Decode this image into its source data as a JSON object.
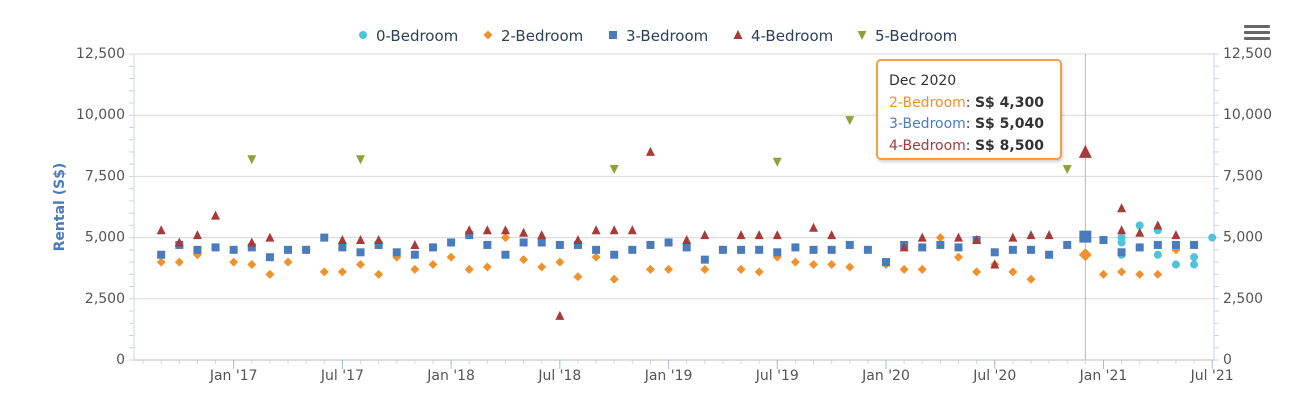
{
  "chart_data": {
    "type": "scatter",
    "x_type": "date",
    "xticks": [
      "Jan '17",
      "Jul '17",
      "Jan '18",
      "Jul '18",
      "Jan '19",
      "Jul '19",
      "Jan '20",
      "Jul '20",
      "Jan '21",
      "Jul '21"
    ],
    "x_tick_dates": [
      "2017-01",
      "2017-07",
      "2018-01",
      "2018-07",
      "2019-01",
      "2019-07",
      "2020-01",
      "2020-07",
      "2021-01",
      "2021-07"
    ],
    "xlim": [
      "2016-08",
      "2021-07"
    ],
    "ylabel": "Rental (S$)",
    "yticks": [
      "0",
      "2,500",
      "5,000",
      "7,500",
      "10,000",
      "12,500"
    ],
    "ylim": [
      0,
      12500
    ],
    "secondary_y_axis": true,
    "grid": "horizontal",
    "legend": "top-center",
    "series": [
      {
        "name": "0-Bedroom",
        "color": "#4fc3d8",
        "marker": "circle",
        "points": [
          [
            "2021-02",
            4300
          ],
          [
            "2021-02",
            4800
          ],
          [
            "2021-02",
            5000
          ],
          [
            "2021-03",
            5500
          ],
          [
            "2021-04",
            4300
          ],
          [
            "2021-04",
            5300
          ],
          [
            "2021-05",
            3900
          ],
          [
            "2021-06",
            4200
          ],
          [
            "2021-06",
            3900
          ],
          [
            "2021-07",
            5000
          ]
        ]
      },
      {
        "name": "2-Bedroom",
        "color": "#f0922b",
        "marker": "diamond",
        "points": [
          [
            "2016-09",
            4000
          ],
          [
            "2016-10",
            4000
          ],
          [
            "2016-11",
            4300
          ],
          [
            "2017-01",
            4000
          ],
          [
            "2017-02",
            3900
          ],
          [
            "2017-03",
            3500
          ],
          [
            "2017-04",
            4000
          ],
          [
            "2017-05",
            4500
          ],
          [
            "2017-06",
            3600
          ],
          [
            "2017-07",
            3600
          ],
          [
            "2017-08",
            3900
          ],
          [
            "2017-09",
            3500
          ],
          [
            "2017-10",
            4200
          ],
          [
            "2017-11",
            3700
          ],
          [
            "2017-12",
            3900
          ],
          [
            "2018-01",
            4200
          ],
          [
            "2018-02",
            3700
          ],
          [
            "2018-03",
            3800
          ],
          [
            "2018-04",
            5000
          ],
          [
            "2018-05",
            4100
          ],
          [
            "2018-06",
            3800
          ],
          [
            "2018-07",
            4000
          ],
          [
            "2018-08",
            3400
          ],
          [
            "2018-09",
            4200
          ],
          [
            "2018-10",
            3300
          ],
          [
            "2018-12",
            3700
          ],
          [
            "2019-01",
            3700
          ],
          [
            "2019-03",
            3700
          ],
          [
            "2019-04",
            4500
          ],
          [
            "2019-05",
            3700
          ],
          [
            "2019-06",
            3600
          ],
          [
            "2019-07",
            4200
          ],
          [
            "2019-08",
            4000
          ],
          [
            "2019-09",
            3900
          ],
          [
            "2019-10",
            3900
          ],
          [
            "2019-11",
            3800
          ],
          [
            "2020-01",
            3900
          ],
          [
            "2020-02",
            3700
          ],
          [
            "2020-03",
            3700
          ],
          [
            "2020-04",
            5000
          ],
          [
            "2020-05",
            4200
          ],
          [
            "2020-06",
            3600
          ],
          [
            "2020-07",
            3900
          ],
          [
            "2020-08",
            3600
          ],
          [
            "2020-09",
            3300
          ],
          [
            "2020-12",
            4300
          ],
          [
            "2021-01",
            3500
          ],
          [
            "2021-02",
            3600
          ],
          [
            "2021-03",
            3500
          ],
          [
            "2021-04",
            3500
          ],
          [
            "2021-05",
            4500
          ]
        ]
      },
      {
        "name": "3-Bedroom",
        "color": "#4a7cbc",
        "marker": "square",
        "points": [
          [
            "2016-09",
            4300
          ],
          [
            "2016-10",
            4700
          ],
          [
            "2016-11",
            4500
          ],
          [
            "2016-12",
            4600
          ],
          [
            "2017-01",
            4500
          ],
          [
            "2017-02",
            4600
          ],
          [
            "2017-03",
            4200
          ],
          [
            "2017-04",
            4500
          ],
          [
            "2017-05",
            4500
          ],
          [
            "2017-06",
            5000
          ],
          [
            "2017-07",
            4600
          ],
          [
            "2017-08",
            4400
          ],
          [
            "2017-09",
            4700
          ],
          [
            "2017-10",
            4400
          ],
          [
            "2017-11",
            4300
          ],
          [
            "2017-12",
            4600
          ],
          [
            "2018-01",
            4800
          ],
          [
            "2018-02",
            5100
          ],
          [
            "2018-03",
            4700
          ],
          [
            "2018-04",
            4300
          ],
          [
            "2018-05",
            4800
          ],
          [
            "2018-06",
            4800
          ],
          [
            "2018-07",
            4700
          ],
          [
            "2018-08",
            4700
          ],
          [
            "2018-09",
            4500
          ],
          [
            "2018-10",
            4300
          ],
          [
            "2018-11",
            4500
          ],
          [
            "2018-12",
            4700
          ],
          [
            "2019-01",
            4800
          ],
          [
            "2019-02",
            4600
          ],
          [
            "2019-03",
            4100
          ],
          [
            "2019-04",
            4500
          ],
          [
            "2019-05",
            4500
          ],
          [
            "2019-06",
            4500
          ],
          [
            "2019-07",
            4400
          ],
          [
            "2019-08",
            4600
          ],
          [
            "2019-09",
            4500
          ],
          [
            "2019-10",
            4500
          ],
          [
            "2019-11",
            4700
          ],
          [
            "2019-12",
            4500
          ],
          [
            "2020-01",
            4000
          ],
          [
            "2020-02",
            4700
          ],
          [
            "2020-03",
            4600
          ],
          [
            "2020-04",
            4700
          ],
          [
            "2020-05",
            4600
          ],
          [
            "2020-06",
            4900
          ],
          [
            "2020-07",
            4400
          ],
          [
            "2020-08",
            4500
          ],
          [
            "2020-09",
            4500
          ],
          [
            "2020-10",
            4300
          ],
          [
            "2020-11",
            4700
          ],
          [
            "2020-12",
            5040
          ],
          [
            "2021-01",
            4900
          ],
          [
            "2021-02",
            4400
          ],
          [
            "2021-03",
            4600
          ],
          [
            "2021-04",
            4700
          ],
          [
            "2021-05",
            4700
          ],
          [
            "2021-06",
            4700
          ]
        ]
      },
      {
        "name": "4-Bedroom",
        "color": "#a83a3a",
        "marker": "triangle",
        "points": [
          [
            "2016-09",
            5300
          ],
          [
            "2016-10",
            4800
          ],
          [
            "2016-11",
            5100
          ],
          [
            "2016-12",
            5900
          ],
          [
            "2017-02",
            4800
          ],
          [
            "2017-03",
            5000
          ],
          [
            "2017-07",
            4900
          ],
          [
            "2017-08",
            4900
          ],
          [
            "2017-09",
            4900
          ],
          [
            "2017-11",
            4700
          ],
          [
            "2018-02",
            5300
          ],
          [
            "2018-03",
            5300
          ],
          [
            "2018-04",
            5300
          ],
          [
            "2018-05",
            5200
          ],
          [
            "2018-06",
            5100
          ],
          [
            "2018-07",
            1800
          ],
          [
            "2018-08",
            4900
          ],
          [
            "2018-09",
            5300
          ],
          [
            "2018-10",
            5300
          ],
          [
            "2018-11",
            5300
          ],
          [
            "2018-12",
            8500
          ],
          [
            "2019-02",
            4900
          ],
          [
            "2019-03",
            5100
          ],
          [
            "2019-05",
            5100
          ],
          [
            "2019-06",
            5100
          ],
          [
            "2019-07",
            5100
          ],
          [
            "2019-09",
            5400
          ],
          [
            "2019-10",
            5100
          ],
          [
            "2020-02",
            4600
          ],
          [
            "2020-03",
            5000
          ],
          [
            "2020-05",
            5000
          ],
          [
            "2020-06",
            4900
          ],
          [
            "2020-07",
            3900
          ],
          [
            "2020-08",
            5000
          ],
          [
            "2020-09",
            5100
          ],
          [
            "2020-10",
            5100
          ],
          [
            "2020-12",
            8500
          ],
          [
            "2021-02",
            6200
          ],
          [
            "2021-02",
            5300
          ],
          [
            "2021-03",
            5200
          ],
          [
            "2021-04",
            5500
          ],
          [
            "2021-05",
            5100
          ]
        ]
      },
      {
        "name": "5-Bedroom",
        "color": "#8ea23a",
        "marker": "triangle-down",
        "points": [
          [
            "2017-02",
            8200
          ],
          [
            "2017-08",
            8200
          ],
          [
            "2018-10",
            7800
          ],
          [
            "2019-07",
            8100
          ],
          [
            "2019-11",
            9800
          ],
          [
            "2020-11",
            7800
          ]
        ]
      }
    ],
    "tooltip": {
      "title": "Dec 2020",
      "rows": [
        {
          "series": "2-Bedroom",
          "value": "S$ 4,300",
          "color": "#f0922b"
        },
        {
          "series": "3-Bedroom",
          "value": "S$ 5,040",
          "color": "#4a7cbc"
        },
        {
          "series": "4-Bedroom",
          "value": "S$ 8,500",
          "color": "#a83a3a"
        }
      ]
    },
    "highlight_date": "2020-12"
  },
  "colors": {
    "grid": "#d8d8d8",
    "axis_text": "#555555",
    "ylabel": "#4a7cbc",
    "legend_text": "#2d3f5a",
    "tooltip_border": "#f0a04b"
  },
  "menu_icon": "hamburger-menu-icon"
}
